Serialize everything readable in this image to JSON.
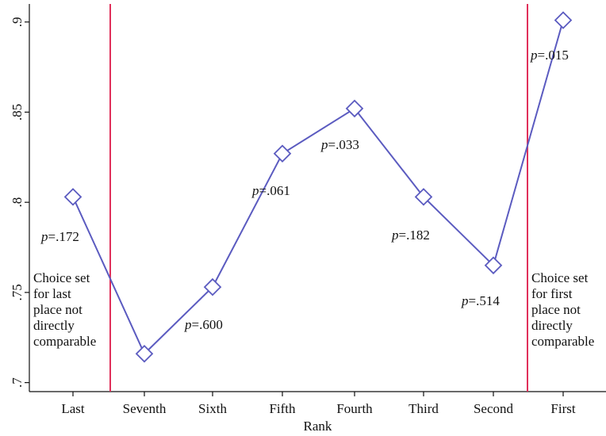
{
  "chart_data": {
    "type": "line",
    "xlabel": "Rank",
    "ylabel": "",
    "ylim": [
      0.695,
      0.91
    ],
    "yticks": [
      {
        "value": 0.7,
        "label": ".7"
      },
      {
        "value": 0.75,
        "label": ".75"
      },
      {
        "value": 0.8,
        "label": ".8"
      },
      {
        "value": 0.85,
        "label": ".85"
      },
      {
        "value": 0.9,
        "label": ".9"
      }
    ],
    "categories": [
      "Last",
      "Seventh",
      "Sixth",
      "Fifth",
      "Fourth",
      "Third",
      "Second",
      "First"
    ],
    "series": [
      {
        "values": [
          0.803,
          0.716,
          0.753,
          0.827,
          0.852,
          0.803,
          0.765,
          0.901
        ],
        "color": "#5b5bc0",
        "marker": "diamond"
      }
    ],
    "p_values": [
      {
        "prefix": "p",
        "text": "=.172",
        "category": "Last"
      },
      {
        "prefix": "p",
        "text": "=.600",
        "category": "Sixth"
      },
      {
        "prefix": "p",
        "text": "=.061",
        "category": "Fifth"
      },
      {
        "prefix": "p",
        "text": "=.033",
        "category": "Fourth"
      },
      {
        "prefix": "p",
        "text": "=.182",
        "category": "Third"
      },
      {
        "prefix": "p",
        "text": "=.514",
        "category": "Second"
      },
      {
        "prefix": "p",
        "text": "=.015",
        "category": "First"
      }
    ],
    "reference_lines": [
      {
        "between": [
          "Last",
          "Seventh"
        ],
        "color": "#e0305a"
      },
      {
        "between": [
          "Second",
          "First"
        ],
        "color": "#e0305a"
      }
    ],
    "annotations": [
      {
        "lines": [
          "Choice set",
          "for last",
          "place not",
          "directly",
          "comparable"
        ],
        "side": "left"
      },
      {
        "lines": [
          "Choice set",
          "for first",
          "place not",
          "directly",
          "comparable"
        ],
        "side": "right"
      }
    ],
    "grid": false,
    "legend": "none"
  }
}
